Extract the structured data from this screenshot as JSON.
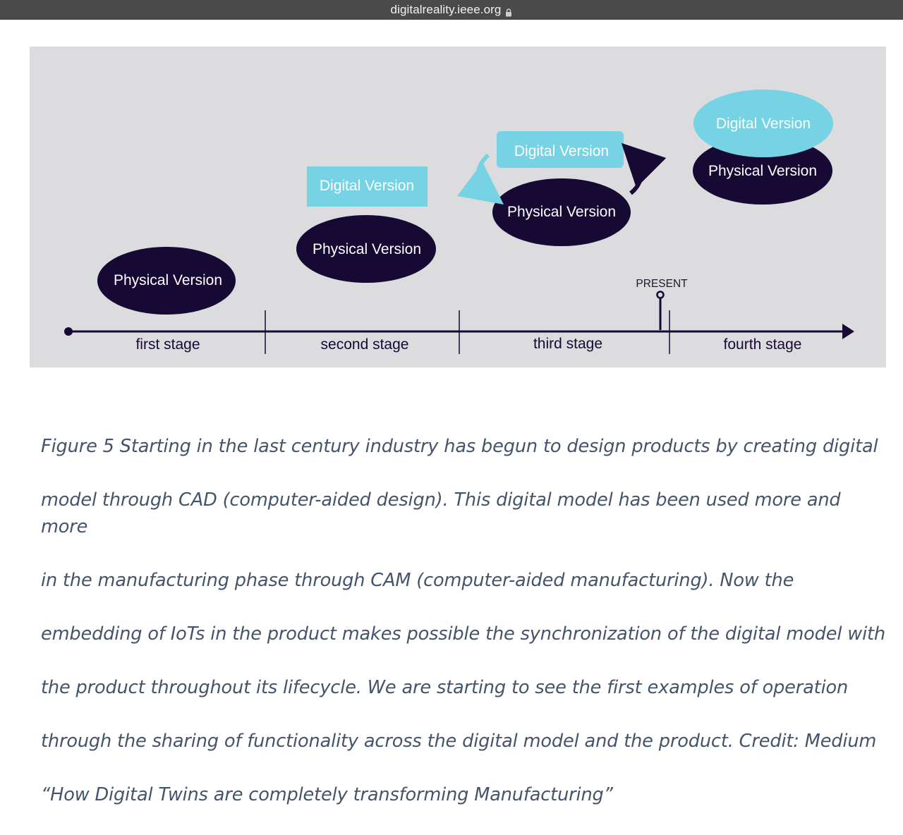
{
  "browser": {
    "url": "digitalreality.ieee.org",
    "lock_icon": "lock-icon"
  },
  "figure": {
    "colors": {
      "background": "#dcdcde",
      "physical_fill": "#160a35",
      "digital_fill": "#75d3e3",
      "timeline": "#160a35",
      "arrow_accent": "#75d3e3"
    },
    "present_label": "PRESENT",
    "stages": [
      {
        "label": "first stage",
        "physical": "Physical Version",
        "digital": ""
      },
      {
        "label": "second stage",
        "physical": "Physical Version",
        "digital": "Digital Version"
      },
      {
        "label": "third stage",
        "physical": "Physical Version",
        "digital": "Digital Version"
      },
      {
        "label": "fourth stage",
        "physical": "Physical Version",
        "digital": "Digital Version"
      }
    ]
  },
  "caption": {
    "lines": [
      "Figure 5 Starting in the last century industry has begun to design products by creating digital",
      "model through CAD (computer-aided design). This digital model has been used more and more",
      "in the manufacturing phase through CAM (computer-aided manufacturing). Now the",
      "embedding of IoTs in the product makes possible the synchronization of the digital model with",
      "the product throughout its lifecycle. We are starting to see the first examples of operation",
      "through the sharing of functionality across the digital model and the product. Credit: Medium",
      "“How Digital Twins are completely transforming Manufacturing”"
    ]
  }
}
